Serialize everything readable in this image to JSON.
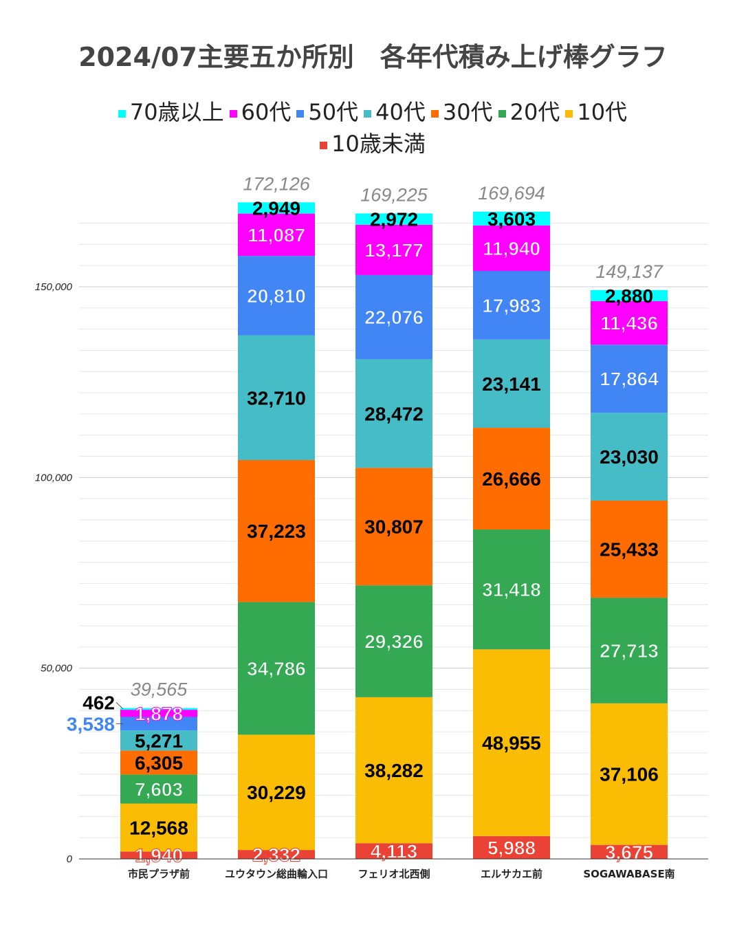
{
  "chart_data": {
    "type": "bar",
    "stacked": true,
    "title": "2024/07主要五か所別　各年代積み上げ棒グラフ",
    "categories": [
      "市民プラザ前",
      "ユウタウン総曲輪入口",
      "フェリオ北西側",
      "エルサカエ前",
      "SOGAWABASE南"
    ],
    "series": [
      {
        "name": "10歳未満",
        "color": "#ea4335",
        "label_color": "#ffffff",
        "values": [
          1940,
          2332,
          4113,
          5988,
          3675
        ]
      },
      {
        "name": "10代",
        "color": "#fbbc04",
        "label_color": "#000000",
        "values": [
          12568,
          30229,
          38282,
          48955,
          37106
        ]
      },
      {
        "name": "20代",
        "color": "#34a853",
        "label_color": "#ffffff",
        "values": [
          7603,
          34786,
          29326,
          31418,
          27713
        ]
      },
      {
        "name": "30代",
        "color": "#ff6d01",
        "label_color": "#000000",
        "values": [
          6305,
          37223,
          30807,
          26666,
          25433
        ]
      },
      {
        "name": "40代",
        "color": "#46bdc6",
        "label_color": "#000000",
        "values": [
          5271,
          32710,
          28472,
          23141,
          23030
        ]
      },
      {
        "name": "50代",
        "color": "#4285f4",
        "label_color": "#ffffff",
        "values": [
          3538,
          20810,
          22076,
          17983,
          17864
        ]
      },
      {
        "name": "60代",
        "color": "#ff00ff",
        "label_color": "#ffffff",
        "values": [
          1878,
          11087,
          13177,
          11940,
          11436
        ]
      },
      {
        "name": "70歳以上",
        "color": "#00ffff",
        "label_color": "#000000",
        "values": [
          462,
          2949,
          2972,
          3603,
          2880
        ]
      }
    ],
    "totals": [
      39565,
      172126,
      169225,
      169694,
      149137
    ],
    "legend_order": [
      "70歳以上",
      "60代",
      "50代",
      "40代",
      "30代",
      "20代",
      "10代",
      "10歳未満"
    ],
    "legend_position": "top",
    "yticks": [
      "0",
      "50,000",
      "100,000",
      "150,000"
    ],
    "ylim": [
      0,
      166667
    ],
    "grid": true
  }
}
